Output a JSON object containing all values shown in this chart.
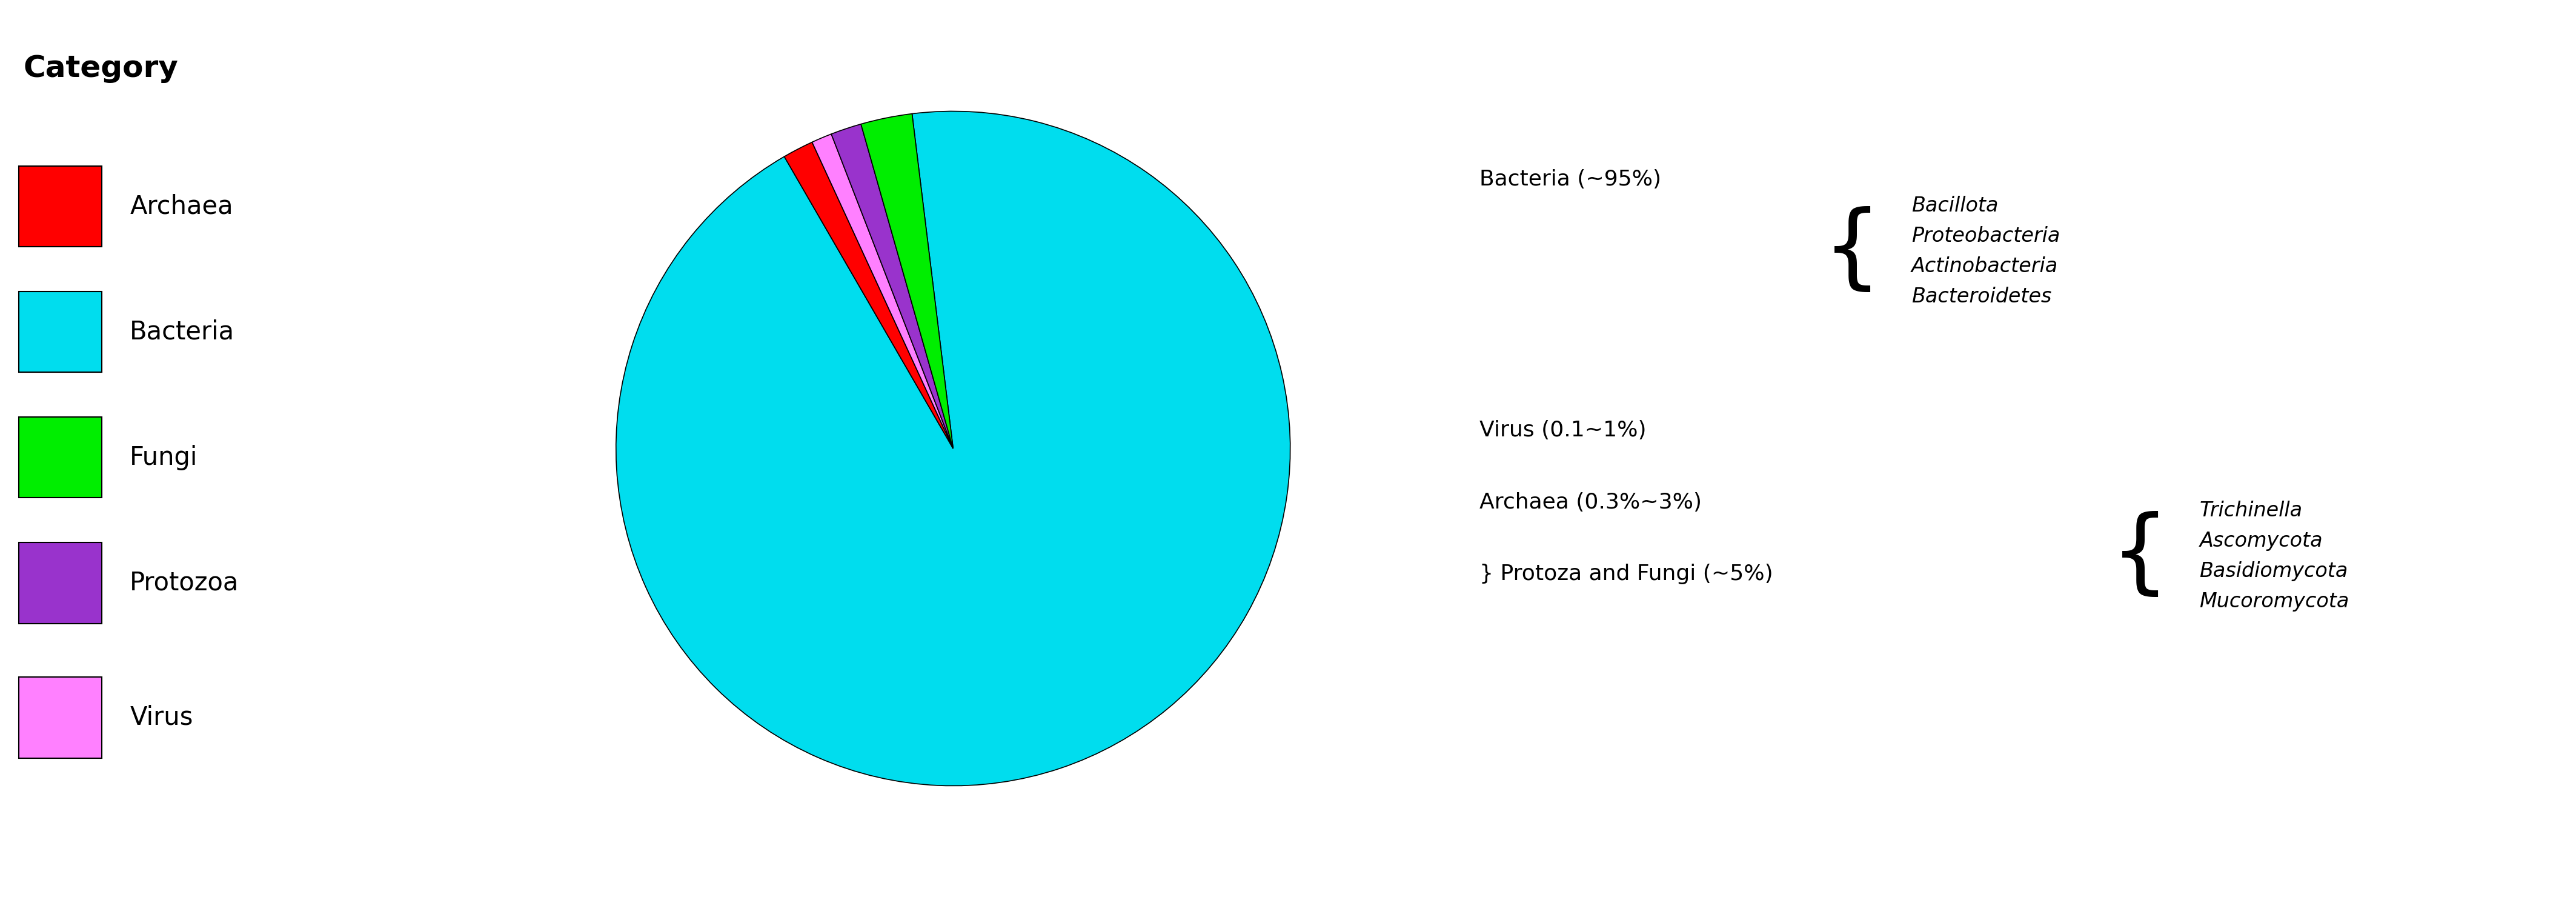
{
  "slices": [
    {
      "label": "Bacteria",
      "value": 95.0,
      "color": "#00DDEE"
    },
    {
      "label": "Archaea",
      "value": 1.5,
      "color": "#FF0000"
    },
    {
      "label": "Virus",
      "value": 1.0,
      "color": "#FF80FF"
    },
    {
      "label": "Protozoa",
      "value": 1.5,
      "color": "#9933CC"
    },
    {
      "label": "Fungi",
      "value": 2.5,
      "color": "#00EE00"
    }
  ],
  "legend_title": "Category",
  "legend_entries": [
    {
      "label": "Archaea",
      "color": "#FF0000"
    },
    {
      "label": "Bacteria",
      "color": "#00DDEE"
    },
    {
      "label": "Fungi",
      "color": "#00EE00"
    },
    {
      "label": "Protozoa",
      "color": "#9933CC"
    },
    {
      "label": "Virus",
      "color": "#FF80FF"
    }
  ],
  "startangle": 270.0,
  "bacteria_label": "Bacteria (~95%)",
  "virus_label": "Virus (0.1~1%)",
  "archaea_label": "Archaea (0.3%~3%)",
  "protoza_label": "} Protoza and Fungi (~5%)",
  "bacteria_phyla": "Bacillota\nProteobacteria\nActinobacteria\nBacteroidetes",
  "fungi_phyla": "Trichinella\nAscomycota\nBasidiomycota\nMucoromycota",
  "background_color": "#FFFFFF",
  "label_fontsize": 26,
  "italic_fontsize": 24,
  "legend_title_fontsize": 36,
  "legend_label_fontsize": 30
}
